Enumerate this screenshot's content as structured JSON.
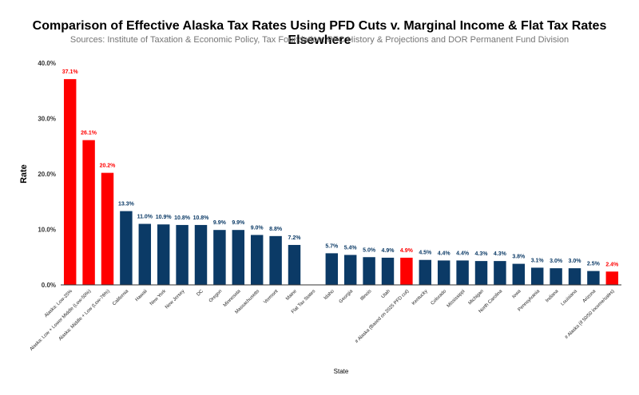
{
  "chart_data": {
    "type": "bar",
    "title": "Comparison of Effective Alaska Tax Rates Using PFD Cuts v. Marginal Income & Flat Tax Rates Elsewhere",
    "subtitle": "Sources: Institute of Taxation & Economic Policy, Tax Foundation, PFC History & Projections and DOR Permanent Fund Division",
    "xlabel": "State",
    "ylabel": "Rate",
    "ylim": [
      0,
      40
    ],
    "yticks": [
      "0.0%",
      "10.0%",
      "20.0%",
      "30.0%",
      "40.0%"
    ],
    "categories": [
      "Alaska: Low-25%",
      "Alaska: Low + Lower Middle (Low-50%)",
      "Alaska: Middle + Low (Low-76%)",
      "California",
      "Hawaii",
      "New York",
      "New Jersey",
      "DC",
      "Oregon",
      "Minnesota",
      "Massachusetts",
      "Vermont",
      "Maine",
      "Flat Tax States",
      "Idaho",
      "Georgia",
      "Illinois",
      "Utah",
      "# Alaska (Based on 2025 PFD cut)",
      "Kentucky",
      "Colorado",
      "Mississippi",
      "Michigan",
      "North Carolina",
      "Iowa",
      "Pennsylvania",
      "Indiana",
      "Louisiana",
      "Arizona",
      "# Alaska (if 50/50 income/sales)"
    ],
    "values": [
      37.1,
      26.1,
      20.2,
      13.3,
      11.0,
      10.9,
      10.8,
      10.8,
      9.9,
      9.9,
      9.0,
      8.8,
      7.2,
      null,
      5.7,
      5.4,
      5.0,
      4.9,
      4.9,
      4.5,
      4.4,
      4.4,
      4.3,
      4.3,
      3.8,
      3.1,
      3.0,
      3.0,
      2.5,
      2.4
    ],
    "labels": [
      "37.1%",
      "26.1%",
      "20.2%",
      "13.3%",
      "11.0%",
      "10.9%",
      "10.8%",
      "10.8%",
      "9.9%",
      "9.9%",
      "9.0%",
      "8.8%",
      "7.2%",
      "",
      "5.7%",
      "5.4%",
      "5.0%",
      "4.9%",
      "4.9%",
      "4.5%",
      "4.4%",
      "4.4%",
      "4.3%",
      "4.3%",
      "3.8%",
      "3.1%",
      "3.0%",
      "3.0%",
      "2.5%",
      "2.4%"
    ],
    "highlight": [
      0,
      1,
      2,
      18,
      29
    ],
    "colors": {
      "default": "#0b3a66",
      "highlight": "#ff0000",
      "axis": "#333333",
      "label_default": "#0b3a66",
      "label_highlight": "#ff0000"
    }
  }
}
